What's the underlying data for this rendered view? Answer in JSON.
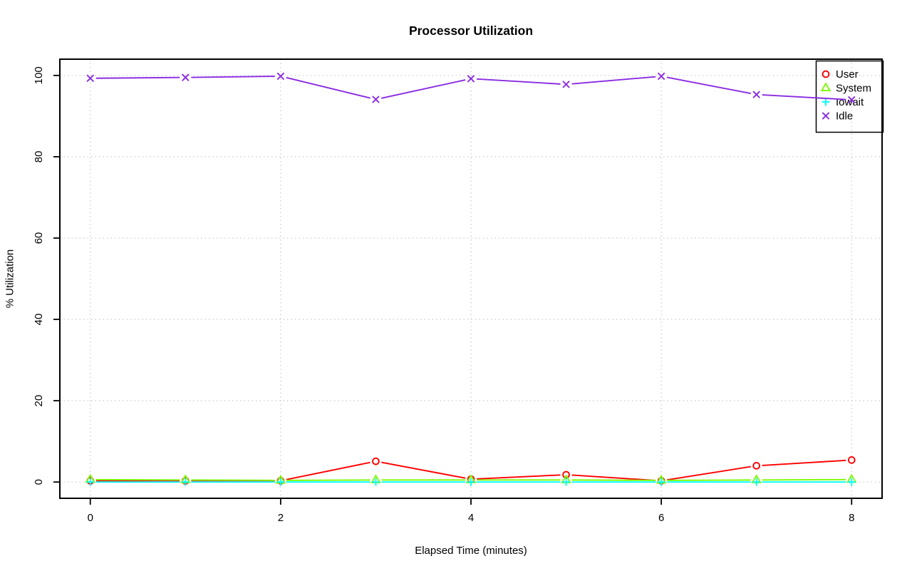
{
  "chart_data": {
    "type": "line",
    "title": "Processor Utilization",
    "xlabel": "Elapsed Time (minutes)",
    "ylabel": "% Utilization",
    "x": [
      0,
      1,
      2,
      3,
      4,
      5,
      6,
      7,
      8
    ],
    "xlim": [
      0,
      8
    ],
    "ylim": [
      0,
      100
    ],
    "x_ticks": [
      0,
      2,
      4,
      6,
      8
    ],
    "y_ticks": [
      0,
      20,
      40,
      60,
      80,
      100
    ],
    "grid": true,
    "grid_style": "dotted",
    "grid_color": "#c9c9c9",
    "legend_position": "top-right",
    "series": [
      {
        "name": "User",
        "color": "#ff0000",
        "marker": "circle",
        "values": [
          0.3,
          0.3,
          0.3,
          5.1,
          0.7,
          1.8,
          0.3,
          4.0,
          5.4
        ]
      },
      {
        "name": "System",
        "color": "#7cfc00",
        "marker": "triangle",
        "values": [
          0.6,
          0.5,
          0.4,
          0.5,
          0.5,
          0.5,
          0.4,
          0.5,
          0.6
        ]
      },
      {
        "name": "Iowait",
        "color": "#00ffff",
        "marker": "plus",
        "values": [
          0.0,
          0.0,
          0.0,
          0.0,
          0.0,
          0.0,
          0.0,
          0.0,
          0.0
        ]
      },
      {
        "name": "Idle",
        "color": "#8a2be2",
        "marker": "x",
        "values": [
          99.3,
          99.5,
          99.8,
          94.1,
          99.2,
          97.8,
          99.8,
          95.3,
          94.0
        ]
      }
    ]
  }
}
